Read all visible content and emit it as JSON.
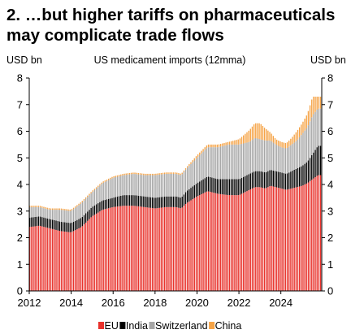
{
  "title_line1": "2. …but higher tariffs on pharmaceuticals",
  "title_line2": "may complicate trade flows",
  "chart_data": {
    "type": "area",
    "stacked": true,
    "subtitle": "US medicament imports (12mma)",
    "ylabel_left": "USD bn",
    "ylabel_right": "USD bn",
    "ylim": [
      0,
      8
    ],
    "yticks": [
      "0",
      "1",
      "2",
      "3",
      "4",
      "5",
      "6",
      "7",
      "8"
    ],
    "xlim": [
      2012.0,
      2025.95
    ],
    "xticks": [
      "2012",
      "2014",
      "2016",
      "2018",
      "2020",
      "2022",
      "2024"
    ],
    "xtick_values": [
      2012,
      2014,
      2016,
      2018,
      2020,
      2022,
      2024
    ],
    "grid": false,
    "legend_position": "bottom",
    "x": [
      2012.0,
      2012.5,
      2013.0,
      2013.5,
      2014.0,
      2014.5,
      2015.0,
      2015.5,
      2016.0,
      2016.5,
      2017.0,
      2017.5,
      2018.0,
      2018.5,
      2019.0,
      2019.25,
      2019.5,
      2020.0,
      2020.5,
      2021.0,
      2021.5,
      2022.0,
      2022.5,
      2022.75,
      2023.0,
      2023.25,
      2023.5,
      2023.75,
      2024.0,
      2024.25,
      2024.5,
      2024.75,
      2025.0,
      2025.25,
      2025.5,
      2025.75
    ],
    "series": [
      {
        "name": "EU",
        "color": "#e8322c",
        "values": [
          2.4,
          2.45,
          2.35,
          2.25,
          2.2,
          2.4,
          2.8,
          3.05,
          3.15,
          3.2,
          3.2,
          3.15,
          3.1,
          3.15,
          3.15,
          3.1,
          3.3,
          3.55,
          3.75,
          3.65,
          3.6,
          3.6,
          3.8,
          3.9,
          3.9,
          3.85,
          3.95,
          3.9,
          3.85,
          3.8,
          3.85,
          3.9,
          3.95,
          4.05,
          4.2,
          4.35
        ]
      },
      {
        "name": "India",
        "color": "#000000",
        "values": [
          0.35,
          0.35,
          0.35,
          0.35,
          0.35,
          0.35,
          0.35,
          0.35,
          0.35,
          0.4,
          0.4,
          0.4,
          0.4,
          0.4,
          0.4,
          0.4,
          0.45,
          0.5,
          0.55,
          0.55,
          0.6,
          0.6,
          0.6,
          0.6,
          0.6,
          0.6,
          0.6,
          0.6,
          0.6,
          0.6,
          0.65,
          0.7,
          0.75,
          0.8,
          0.95,
          1.1
        ]
      },
      {
        "name": "Switzerland",
        "color": "#a6a6a6",
        "values": [
          0.4,
          0.35,
          0.35,
          0.45,
          0.45,
          0.55,
          0.55,
          0.65,
          0.75,
          0.75,
          0.8,
          0.8,
          0.85,
          0.85,
          0.85,
          0.85,
          0.85,
          0.95,
          1.1,
          1.2,
          1.3,
          1.3,
          1.2,
          1.25,
          1.2,
          1.2,
          1.1,
          1.0,
          0.95,
          0.95,
          1.0,
          1.05,
          1.2,
          1.3,
          1.45,
          1.4
        ]
      },
      {
        "name": "China",
        "color": "#f5a346",
        "values": [
          0.05,
          0.05,
          0.05,
          0.05,
          0.05,
          0.05,
          0.05,
          0.05,
          0.05,
          0.05,
          0.05,
          0.05,
          0.05,
          0.05,
          0.05,
          0.05,
          0.05,
          0.1,
          0.1,
          0.1,
          0.1,
          0.2,
          0.45,
          0.55,
          0.6,
          0.45,
          0.3,
          0.2,
          0.2,
          0.2,
          0.25,
          0.35,
          0.4,
          0.5,
          0.7,
          0.45
        ]
      }
    ]
  }
}
